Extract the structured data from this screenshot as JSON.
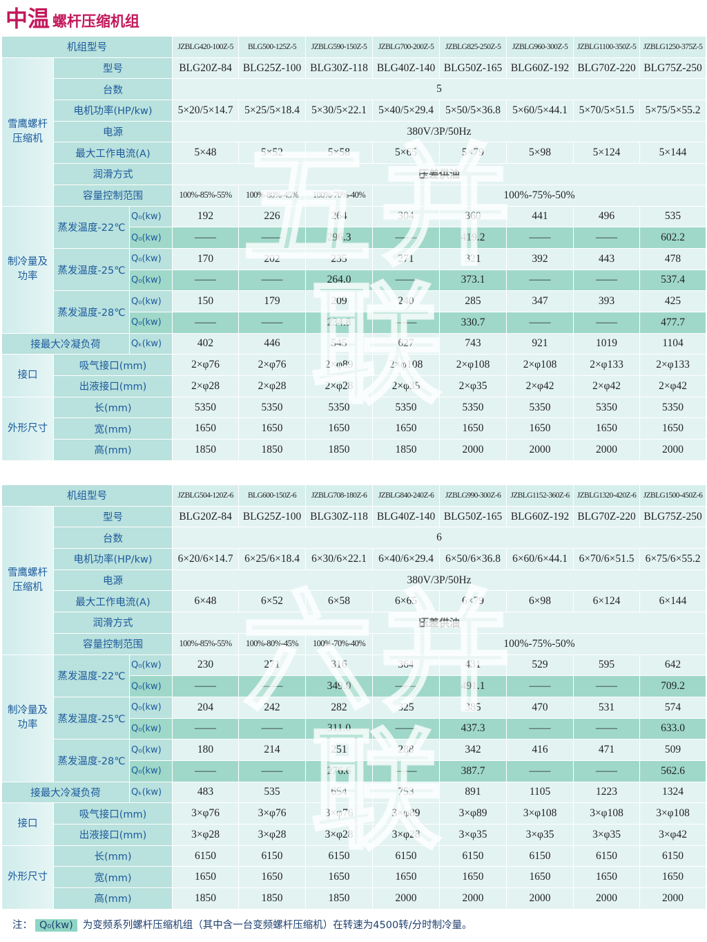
{
  "header": {
    "title_main": "中温",
    "title_sub": "螺杆压缩机组"
  },
  "tables": [
    {
      "watermark": "五并联",
      "model": {
        "label": "机组型号",
        "values": [
          "JZBLG420-100Z-5",
          "BLG500-125Z-5",
          "JZBLG590-150Z-5",
          "JZBLG700-200Z-5",
          "JZBLG825-250Z-5",
          "JZBLG960-300Z-5",
          "JZBLG1100-350Z-5",
          "JZBLG1250-375Z-5"
        ]
      },
      "compressor": {
        "label": "雪鹰螺杆压缩机",
        "rows": [
          {
            "label": "型号",
            "values": [
              "BLG20Z-84",
              "BLG25Z-100",
              "BLG30Z-118",
              "BLG40Z-140",
              "BLG50Z-165",
              "BLG60Z-192",
              "BLG70Z-220",
              "BLG75Z-250"
            ]
          },
          {
            "label": "台数",
            "merged": "5"
          },
          {
            "label": "电机功率(HP/kw)",
            "values": [
              "5×20/5×14.7",
              "5×25/5×18.4",
              "5×30/5×22.1",
              "5×40/5×29.4",
              "5×50/5×36.8",
              "5×60/5×44.1",
              "5×70/5×51.5",
              "5×75/5×55.2"
            ]
          },
          {
            "label": "电源",
            "merged": "380V/3P/50Hz"
          },
          {
            "label": "最大工作电流(A)",
            "values": [
              "5×48",
              "5×52",
              "5×58",
              "5×65",
              "5×79",
              "5×98",
              "5×124",
              "5×144"
            ]
          },
          {
            "label": "润滑方式",
            "merged": "压差供油"
          },
          {
            "label": "容量控制范围",
            "values": [
              "100%-85%-55%",
              "100%-80%-45%",
              "100%-70%-40%"
            ],
            "merged": "100%-75%-50%"
          }
        ]
      },
      "capacity": {
        "label": "制冷量及功率",
        "groups": [
          {
            "label": "蒸发温度-22℃",
            "rows": [
              {
                "unit": "Q₀(kw)",
                "values": [
                  "192",
                  "226",
                  "264",
                  "304",
                  "360",
                  "441",
                  "496",
                  "535"
                ]
              },
              {
                "unit": "Q₀(kw)",
                "values": [
                  "——",
                  "——",
                  "296.3",
                  "——",
                  "419.2",
                  "——",
                  "——",
                  "602.2"
                ]
              }
            ]
          },
          {
            "label": "蒸发温度-25℃",
            "rows": [
              {
                "unit": "Q₀(kw)",
                "values": [
                  "170",
                  "202",
                  "235",
                  "271",
                  "321",
                  "392",
                  "443",
                  "478"
                ]
              },
              {
                "unit": "Q₀(kw)",
                "values": [
                  "——",
                  "——",
                  "264.0",
                  "——",
                  "373.1",
                  "——",
                  "——",
                  "537.4"
                ]
              }
            ]
          },
          {
            "label": "蒸发温度-28℃",
            "rows": [
              {
                "unit": "Q₀(kw)",
                "values": [
                  "150",
                  "179",
                  "209",
                  "240",
                  "285",
                  "347",
                  "393",
                  "425"
                ]
              },
              {
                "unit": "Q₀(kw)",
                "values": [
                  "——",
                  "——",
                  "234.8",
                  "——",
                  "330.7",
                  "——",
                  "——",
                  "477.7"
                ]
              }
            ]
          }
        ]
      },
      "condensing": {
        "label": "接最大冷凝负荷",
        "unit": "Qₖ(kw)",
        "values": [
          "402",
          "446",
          "545",
          "627",
          "743",
          "921",
          "1019",
          "1104"
        ]
      },
      "connections": {
        "label": "接口",
        "rows": [
          {
            "label": "吸气接口(mm)",
            "values": [
              "2×φ76",
              "2×φ76",
              "2×φ89",
              "2×φ108",
              "2×φ108",
              "2×φ108",
              "2×φ133",
              "2×φ133"
            ]
          },
          {
            "label": "出液接口(mm)",
            "values": [
              "2×φ28",
              "2×φ28",
              "2×φ28",
              "2×φ35",
              "2×φ35",
              "2×φ42",
              "2×φ42",
              "2×φ42"
            ]
          }
        ]
      },
      "dimensions": {
        "label": "外形尺寸",
        "rows": [
          {
            "label": "长(mm)",
            "values": [
              "5350",
              "5350",
              "5350",
              "5350",
              "5350",
              "5350",
              "5350",
              "5350"
            ]
          },
          {
            "label": "宽(mm)",
            "values": [
              "1650",
              "1650",
              "1650",
              "1650",
              "1650",
              "1650",
              "1650",
              "1650"
            ]
          },
          {
            "label": "高(mm)",
            "values": [
              "1850",
              "1850",
              "1850",
              "1850",
              "2000",
              "2000",
              "2000",
              "2000"
            ]
          }
        ]
      }
    },
    {
      "watermark": "六并联",
      "model": {
        "label": "机组型号",
        "values": [
          "JZBLG504-120Z-6",
          "BLG600-150Z-6",
          "JZBLG708-180Z-6",
          "JZBLG840-240Z-6",
          "JZBLG990-300Z-6",
          "JZBLG1152-360Z-6",
          "JZBLG1320-420Z-6",
          "JZBLG1500-450Z-6"
        ]
      },
      "compressor": {
        "label": "雪鹰螺杆压缩机",
        "rows": [
          {
            "label": "型号",
            "values": [
              "BLG20Z-84",
              "BLG25Z-100",
              "BLG30Z-118",
              "BLG40Z-140",
              "BLG50Z-165",
              "BLG60Z-192",
              "BLG70Z-220",
              "BLG75Z-250"
            ]
          },
          {
            "label": "台数",
            "merged": "6"
          },
          {
            "label": "电机功率(HP/kw)",
            "values": [
              "6×20/6×14.7",
              "6×25/6×18.4",
              "6×30/6×22.1",
              "6×40/6×29.4",
              "6×50/6×36.8",
              "6×60/6×44.1",
              "6×70/6×51.5",
              "6×75/6×55.2"
            ]
          },
          {
            "label": "电源",
            "merged": "380V/3P/50Hz"
          },
          {
            "label": "最大工作电流(A)",
            "values": [
              "6×48",
              "6×52",
              "6×58",
              "6×65",
              "6×79",
              "6×98",
              "6×124",
              "6×144"
            ]
          },
          {
            "label": "润滑方式",
            "merged": "压差供油"
          },
          {
            "label": "容量控制范围",
            "values": [
              "100%-85%-55%",
              "100%-80%-45%",
              "100%-70%-40%"
            ],
            "merged": "100%-75%-50%"
          }
        ]
      },
      "capacity": {
        "label": "制冷量及功率",
        "groups": [
          {
            "label": "蒸发温度-22℃",
            "rows": [
              {
                "unit": "Q₀(kw)",
                "values": [
                  "230",
                  "271",
                  "316",
                  "364",
                  "431",
                  "529",
                  "595",
                  "642"
                ]
              },
              {
                "unit": "Q₀(kw)",
                "values": [
                  "——",
                  "——",
                  "349.0",
                  "——",
                  "491.1",
                  "——",
                  "——",
                  "709.2"
                ]
              }
            ]
          },
          {
            "label": "蒸发温度-25℃",
            "rows": [
              {
                "unit": "Q₀(kw)",
                "values": [
                  "204",
                  "242",
                  "282",
                  "325",
                  "385",
                  "470",
                  "531",
                  "574"
                ]
              },
              {
                "unit": "Q₀(kw)",
                "values": [
                  "——",
                  "——",
                  "311.0",
                  "——",
                  "437.3",
                  "——",
                  "——",
                  "633.0"
                ]
              }
            ]
          },
          {
            "label": "蒸发温度-28℃",
            "rows": [
              {
                "unit": "Q₀(kw)",
                "values": [
                  "180",
                  "214",
                  "251",
                  "288",
                  "342",
                  "416",
                  "471",
                  "509"
                ]
              },
              {
                "unit": "Q₀(kw)",
                "values": [
                  "——",
                  "——",
                  "276.6",
                  "——",
                  "387.7",
                  "——",
                  "——",
                  "562.6"
                ]
              }
            ]
          }
        ]
      },
      "condensing": {
        "label": "接最大冷凝负荷",
        "unit": "Qₖ(kw)",
        "values": [
          "483",
          "535",
          "654",
          "753",
          "891",
          "1105",
          "1223",
          "1324"
        ]
      },
      "connections": {
        "label": "接口",
        "rows": [
          {
            "label": "吸气接口(mm)",
            "values": [
              "3×φ76",
              "3×φ76",
              "3×φ76",
              "3×φ89",
              "3×φ89",
              "3×φ108",
              "3×φ108",
              "3×φ108"
            ]
          },
          {
            "label": "出液接口(mm)",
            "values": [
              "3×φ28",
              "3×φ28",
              "3×φ28",
              "3×φ28",
              "3×φ35",
              "3×φ35",
              "3×φ35",
              "3×φ42"
            ]
          }
        ]
      },
      "dimensions": {
        "label": "外形尺寸",
        "rows": [
          {
            "label": "长(mm)",
            "values": [
              "6150",
              "6150",
              "6150",
              "6150",
              "6150",
              "6150",
              "6150",
              "6150"
            ]
          },
          {
            "label": "宽(mm)",
            "values": [
              "1650",
              "1650",
              "1650",
              "1650",
              "1650",
              "1650",
              "1650",
              "1650"
            ]
          },
          {
            "label": "高(mm)",
            "values": [
              "1850",
              "1850",
              "1850",
              "2000",
              "2000",
              "2000",
              "2000",
              "2000"
            ]
          }
        ]
      }
    }
  ],
  "note": {
    "prefix": "注：",
    "term": "Q₀(kw)",
    "text": "为变频系列螺杆压缩机组（其中含一台变频螺杆压缩机）在转速为4500转/分时制冷量。"
  }
}
